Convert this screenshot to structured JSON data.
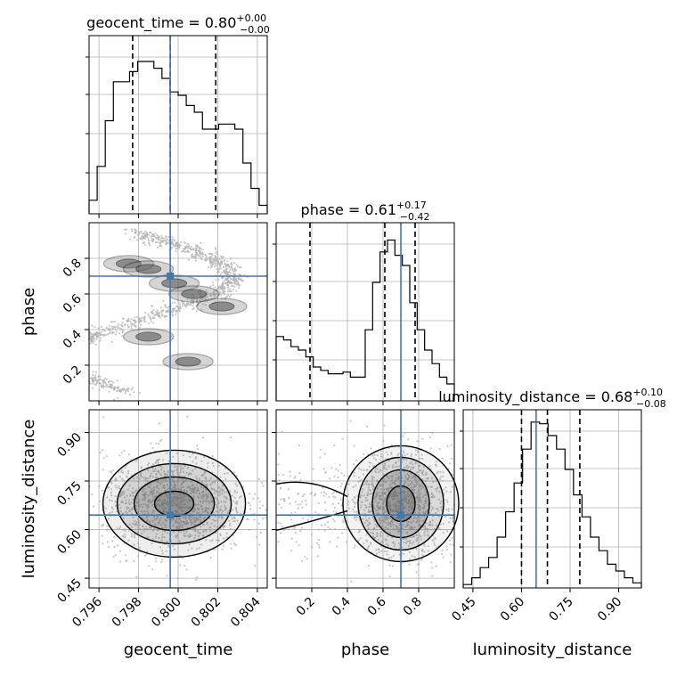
{
  "chart_data": {
    "type": "corner",
    "parameters": [
      {
        "name": "geocent_time",
        "title_prefix": "geocent_time = ",
        "median": "0.80",
        "err_plus": "+0.00",
        "err_minus": "−0.00",
        "range": [
          0.7955,
          0.8045
        ],
        "ticks": [
          0.796,
          0.798,
          0.8,
          0.802,
          0.804
        ],
        "tick_labels": [
          "0.796",
          "0.798",
          "0.800",
          "0.802",
          "0.804"
        ],
        "quantiles": [
          0.7977,
          0.7996,
          0.8019
        ],
        "truth": 0.7996,
        "hist": [
          0.08,
          0.28,
          0.55,
          0.78,
          0.78,
          0.84,
          0.9,
          0.9,
          0.86,
          0.8,
          0.72,
          0.7,
          0.64,
          0.6,
          0.5,
          0.5,
          0.53,
          0.53,
          0.5,
          0.3,
          0.15,
          0.05
        ]
      },
      {
        "name": "phase",
        "title_prefix": "phase = ",
        "median": "0.61",
        "err_plus": "+0.17",
        "err_minus": "−0.42",
        "range": [
          0.0,
          1.0
        ],
        "ticks": [
          0.2,
          0.4,
          0.6,
          0.8
        ],
        "tick_labels": [
          "0.2",
          "0.4",
          "0.6",
          "0.8"
        ],
        "quantiles": [
          0.19,
          0.61,
          0.78
        ],
        "truth": 0.7,
        "hist": [
          0.38,
          0.36,
          0.32,
          0.3,
          0.26,
          0.2,
          0.18,
          0.16,
          0.16,
          0.17,
          0.14,
          0.14,
          0.42,
          0.7,
          0.88,
          0.95,
          0.86,
          0.8,
          0.58,
          0.42,
          0.3,
          0.22,
          0.14,
          0.1
        ]
      },
      {
        "name": "luminosity_distance",
        "title_prefix": "luminosity_distance = ",
        "median": "0.68",
        "err_plus": "+0.10",
        "err_minus": "−0.08",
        "range": [
          0.42,
          0.97
        ],
        "ticks": [
          0.45,
          0.6,
          0.75,
          0.9
        ],
        "tick_labels": [
          "0.45",
          "0.60",
          "0.75",
          "0.90"
        ],
        "quantiles": [
          0.6,
          0.68,
          0.78
        ],
        "truth": 0.645,
        "hist": [
          0.02,
          0.06,
          0.12,
          0.18,
          0.3,
          0.45,
          0.62,
          0.82,
          0.98,
          0.97,
          0.9,
          0.82,
          0.7,
          0.55,
          0.42,
          0.3,
          0.22,
          0.14,
          0.1,
          0.06,
          0.03
        ]
      }
    ],
    "grid": true,
    "colors": {
      "truth": "#4477aa",
      "hist": "#000000",
      "contour": "#000000",
      "points": "#b0b0b0"
    }
  }
}
